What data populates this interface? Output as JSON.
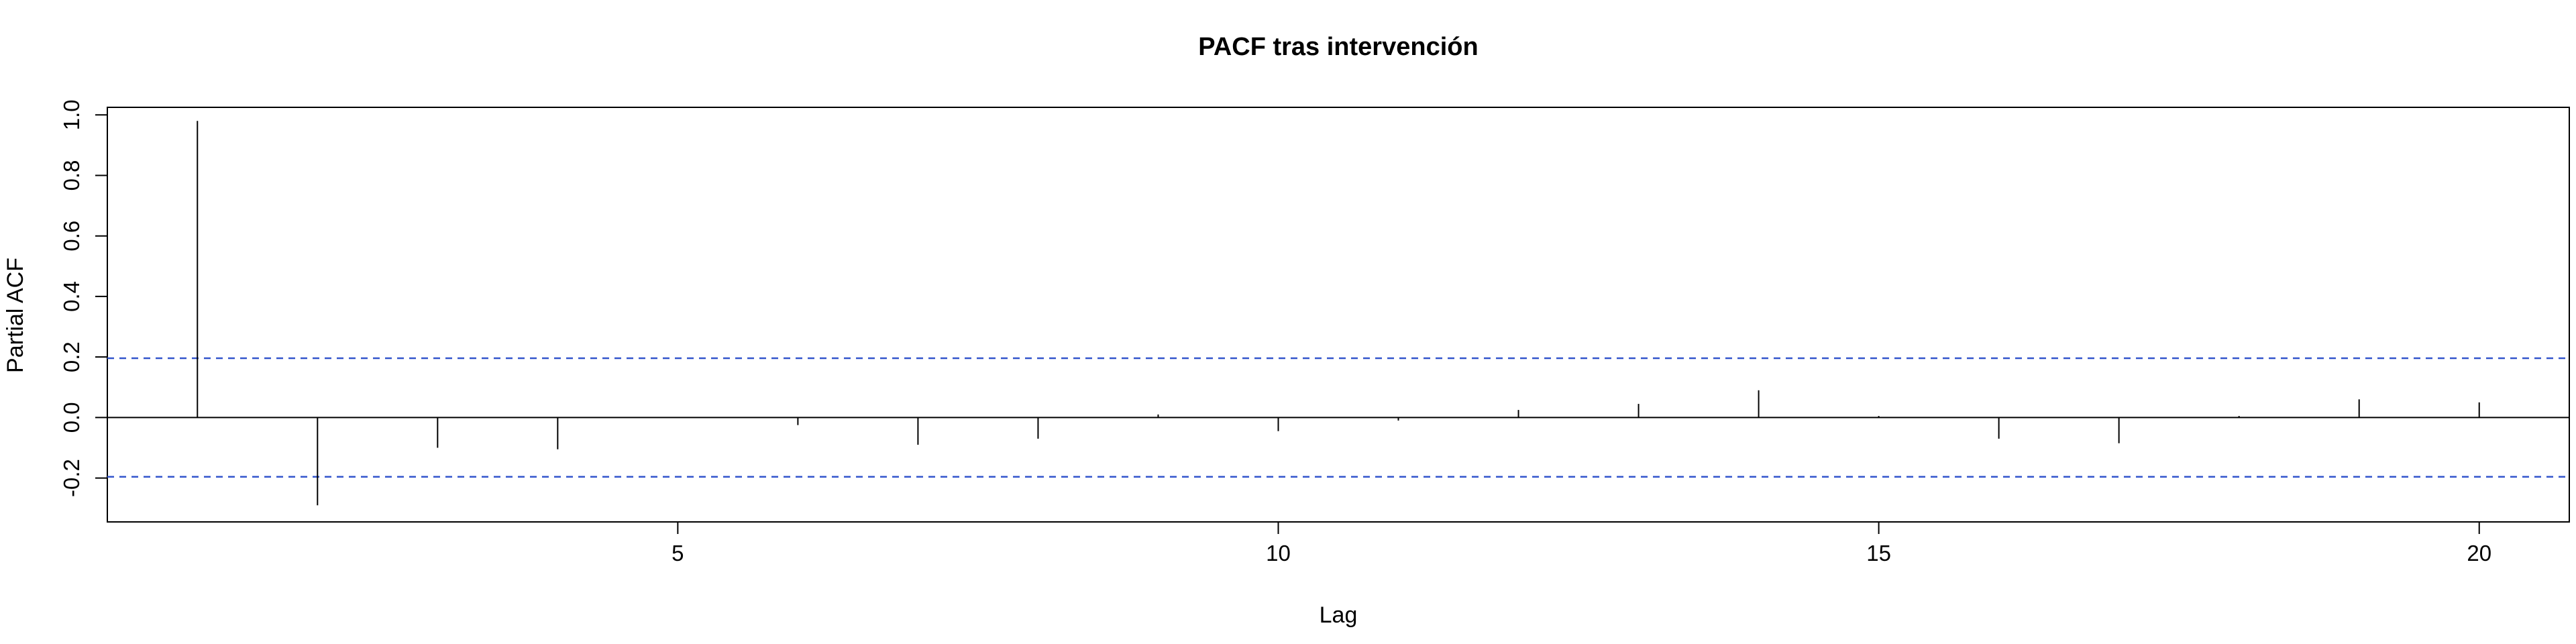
{
  "chart_data": {
    "type": "bar",
    "title": "PACF tras intervención",
    "xlabel": "Lag",
    "ylabel": "Partial ACF",
    "xlim": [
      0.25,
      20.75
    ],
    "ylim": [
      -0.345,
      1.025
    ],
    "x_ticks": [
      5,
      10,
      15,
      20
    ],
    "y_ticks": [
      -0.2,
      0.0,
      0.2,
      0.4,
      0.6,
      0.8,
      1.0
    ],
    "y_tick_labels": [
      "-0.2",
      "0.0",
      "0.2",
      "0.4",
      "0.6",
      "0.8",
      "1.0"
    ],
    "x": [
      1,
      2,
      3,
      4,
      5,
      6,
      7,
      8,
      9,
      10,
      11,
      12,
      13,
      14,
      15,
      16,
      17,
      18,
      19,
      20
    ],
    "values": [
      0.98,
      -0.29,
      -0.1,
      -0.105,
      0.0,
      -0.025,
      -0.09,
      -0.07,
      0.01,
      -0.045,
      -0.01,
      0.025,
      0.045,
      0.09,
      0.005,
      -0.07,
      -0.085,
      0.005,
      0.06,
      0.05
    ],
    "confidence_bound": 0.196,
    "colors": {
      "bars": "#000000",
      "bounds": "#3355cc",
      "zero_line": "#000000",
      "frame": "#000000"
    }
  }
}
